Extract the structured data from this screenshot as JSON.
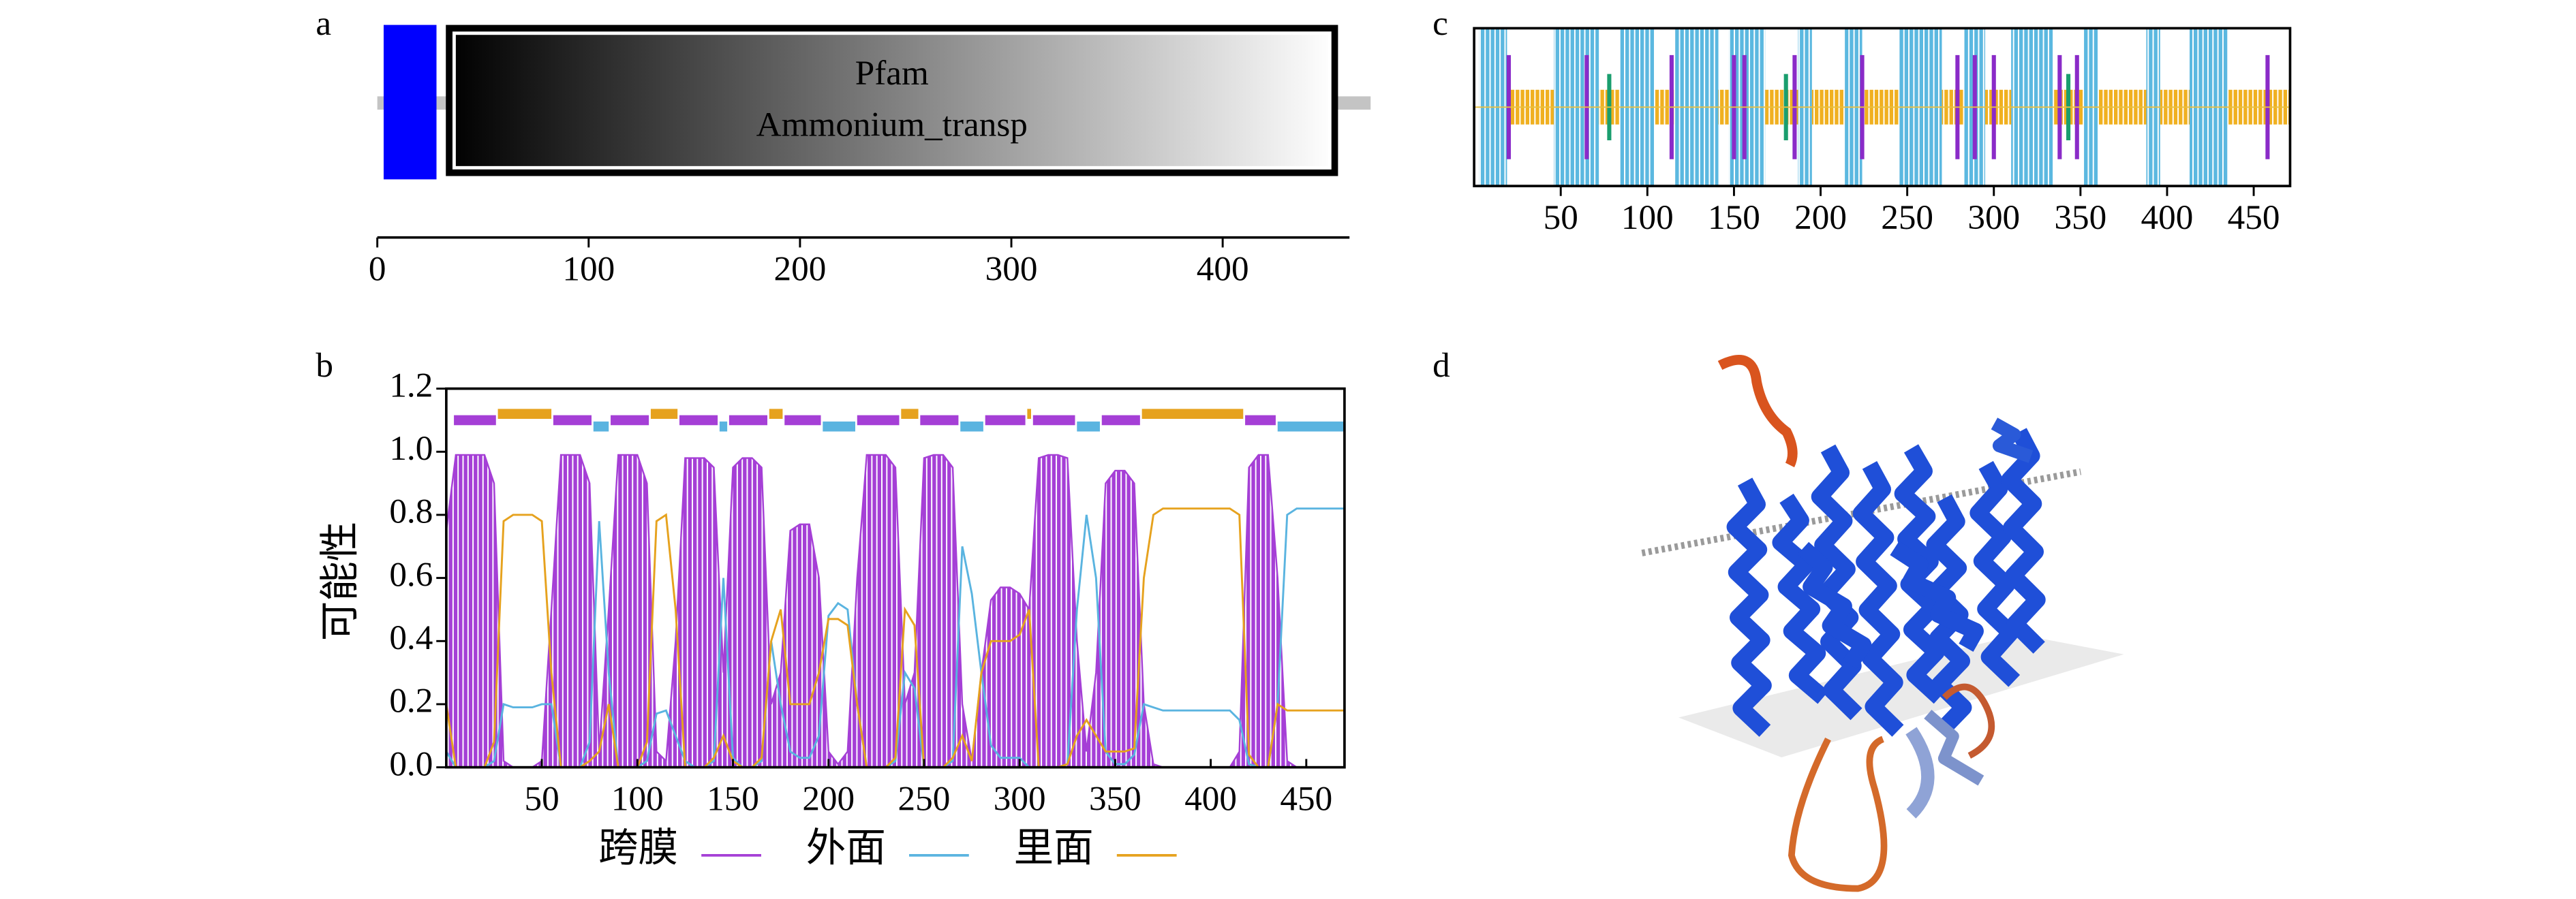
{
  "chart_data": [
    {
      "type": "domain",
      "panel_label": "a",
      "sequence_length": 470,
      "backbone_color": "#c4c4c4",
      "domains": [
        {
          "start": 3,
          "end": 28,
          "color": "#0000ff"
        },
        {
          "start": 34,
          "end": 453,
          "color": [
            "#000000",
            "#ffffff"
          ],
          "name": "Pfam",
          "label": "Ammonium_transp"
        }
      ],
      "xlim": [
        0,
        460
      ],
      "xticks": [
        0,
        100,
        200,
        300,
        400
      ]
    },
    {
      "type": "line",
      "panel_label": "b",
      "ylabel": "可能性",
      "x": [
        0,
        5,
        10,
        15,
        20,
        25,
        30,
        35,
        40,
        45,
        50,
        55,
        60,
        65,
        70,
        75,
        80,
        85,
        90,
        95,
        100,
        105,
        110,
        115,
        120,
        125,
        130,
        135,
        140,
        145,
        150,
        155,
        160,
        165,
        170,
        175,
        180,
        185,
        190,
        195,
        200,
        205,
        210,
        215,
        220,
        225,
        230,
        235,
        240,
        245,
        250,
        255,
        260,
        265,
        270,
        275,
        280,
        285,
        290,
        295,
        300,
        305,
        310,
        315,
        320,
        325,
        330,
        335,
        340,
        345,
        350,
        355,
        360,
        365,
        370,
        375,
        380,
        385,
        390,
        395,
        400,
        405,
        410,
        415,
        420,
        425,
        430,
        435,
        440,
        445,
        450,
        455,
        460,
        465,
        470
      ],
      "xlim": [
        0,
        470
      ],
      "xticks": [
        50,
        100,
        150,
        200,
        250,
        300,
        350,
        400,
        450
      ],
      "ylim": [
        0,
        1.2
      ],
      "yticks": [
        {
          "value": 0,
          "label": "0.0"
        },
        0.2,
        0.4,
        0.6,
        0.8,
        {
          "value": 1,
          "label": "1.0"
        },
        1.2
      ],
      "series": [
        {
          "name": "跨膜",
          "color": "#a53fd6",
          "fill": true,
          "track": 1.1,
          "values": [
            0.75,
            0.99,
            0.99,
            0.99,
            0.99,
            0.9,
            0.02,
            0,
            0,
            0,
            0.02,
            0.5,
            0.99,
            0.99,
            0.99,
            0.9,
            0.05,
            0.5,
            0.99,
            0.99,
            0.99,
            0.9,
            0.05,
            0.02,
            0.4,
            0.98,
            0.98,
            0.98,
            0.95,
            0.3,
            0.95,
            0.98,
            0.98,
            0.95,
            0.2,
            0.3,
            0.75,
            0.77,
            0.77,
            0.6,
            0.05,
            0.01,
            0.05,
            0.6,
            0.99,
            0.99,
            0.99,
            0.95,
            0.2,
            0.3,
            0.98,
            0.99,
            0.99,
            0.95,
            0.2,
            0.02,
            0.3,
            0.53,
            0.57,
            0.57,
            0.55,
            0.5,
            0.98,
            0.99,
            0.99,
            0.98,
            0.4,
            0.05,
            0.3,
            0.9,
            0.94,
            0.94,
            0.9,
            0.2,
            0.01,
            0,
            0,
            0,
            0,
            0,
            0,
            0,
            0,
            0.05,
            0.95,
            0.99,
            0.99,
            0.6,
            0.02,
            0,
            0,
            0,
            0,
            0,
            0
          ],
          "segments": [
            [
              4,
              26
            ],
            [
              56,
              76
            ],
            [
              86,
              106
            ],
            [
              122,
              142
            ],
            [
              148,
              168
            ],
            [
              177,
              196
            ],
            [
              215,
              237
            ],
            [
              248,
              268
            ],
            [
              282,
              303
            ],
            [
              307,
              329
            ],
            [
              343,
              363
            ],
            [
              418,
              434
            ]
          ]
        },
        {
          "name": "外面",
          "color": "#5ab4e0",
          "track": 1.08,
          "values": [
            0.05,
            0,
            0,
            0,
            0,
            0.02,
            0.2,
            0.19,
            0.19,
            0.19,
            0.2,
            0.2,
            0,
            0,
            0,
            0.08,
            0.78,
            0.3,
            0,
            0,
            0,
            0.02,
            0.17,
            0.18,
            0.1,
            0.02,
            0,
            0,
            0.02,
            0.6,
            0.03,
            0,
            0,
            0.02,
            0.4,
            0.2,
            0.05,
            0.03,
            0.03,
            0.1,
            0.48,
            0.52,
            0.5,
            0.2,
            0,
            0,
            0,
            0.02,
            0.3,
            0.25,
            0,
            0,
            0,
            0.02,
            0.7,
            0.55,
            0.3,
            0.07,
            0.03,
            0.03,
            0.03,
            0,
            0,
            0,
            0,
            0.01,
            0.5,
            0.8,
            0.6,
            0.05,
            0.01,
            0.01,
            0.04,
            0.2,
            0.19,
            0.18,
            0.18,
            0.18,
            0.18,
            0.18,
            0.18,
            0.18,
            0.18,
            0.15,
            0.01,
            0,
            0,
            0.2,
            0.8,
            0.82,
            0.82,
            0.82,
            0.82,
            0.82,
            0.82
          ],
          "segments": [
            [
              77,
              85
            ],
            [
              143,
              147
            ],
            [
              197,
              214
            ],
            [
              269,
              281
            ],
            [
              330,
              342
            ],
            [
              435,
              470
            ]
          ]
        },
        {
          "name": "里面",
          "color": "#e6a21e",
          "track": 1.12,
          "values": [
            0.2,
            0,
            0,
            0,
            0,
            0.08,
            0.78,
            0.8,
            0.8,
            0.8,
            0.78,
            0.3,
            0,
            0,
            0,
            0.02,
            0.05,
            0.2,
            0,
            0,
            0,
            0.08,
            0.78,
            0.8,
            0.5,
            0,
            0,
            0,
            0.03,
            0.1,
            0.02,
            0,
            0,
            0.03,
            0.4,
            0.5,
            0.2,
            0.2,
            0.2,
            0.3,
            0.47,
            0.47,
            0.45,
            0.2,
            0,
            0,
            0,
            0.03,
            0.5,
            0.45,
            0,
            0,
            0,
            0.03,
            0.1,
            0.02,
            0.3,
            0.4,
            0.4,
            0.4,
            0.42,
            0.5,
            0,
            0,
            0,
            0.01,
            0.1,
            0.15,
            0.1,
            0.05,
            0.05,
            0.05,
            0.06,
            0.6,
            0.8,
            0.82,
            0.82,
            0.82,
            0.82,
            0.82,
            0.82,
            0.82,
            0.82,
            0.8,
            0.04,
            0,
            0,
            0.2,
            0.18,
            0.18,
            0.18,
            0.18,
            0.18,
            0.18,
            0.18
          ],
          "segments": [
            [
              27,
              55
            ],
            [
              107,
              121
            ],
            [
              169,
              176
            ],
            [
              238,
              247
            ],
            [
              304,
              306
            ],
            [
              364,
              417
            ]
          ]
        }
      ]
    },
    {
      "type": "track",
      "panel_label": "c",
      "xlim": [
        0,
        471
      ],
      "xticks": [
        50,
        100,
        150,
        200,
        250,
        300,
        350,
        400,
        450
      ],
      "series": [
        {
          "color": "#5bb8e0",
          "segments": [
            [
              3,
              19
            ],
            [
              46,
              72
            ],
            [
              84,
              104
            ],
            [
              116,
              141
            ],
            [
              147,
              168
            ],
            [
              187,
              195
            ],
            [
              214,
              224
            ],
            [
              245,
              270
            ],
            [
              283,
              295
            ],
            [
              310,
              334
            ],
            [
              352,
              360
            ],
            [
              388,
              396
            ],
            [
              413,
              435
            ]
          ]
        },
        {
          "color": "#f0b020",
          "segments": [
            [
              19,
              46
            ],
            [
              72,
              84
            ],
            [
              104,
              116
            ],
            [
              141,
              147
            ],
            [
              168,
              187
            ],
            [
              195,
              214
            ],
            [
              224,
              245
            ],
            [
              270,
              283
            ],
            [
              295,
              310
            ],
            [
              334,
              352
            ],
            [
              360,
              388
            ],
            [
              396,
              413
            ],
            [
              435,
              471
            ]
          ]
        },
        {
          "color": "#8a2bc8",
          "positions": [
            20,
            65,
            114,
            150,
            156,
            185,
            224,
            279,
            289,
            300,
            338,
            348,
            458
          ]
        },
        {
          "color": "#1a9e6e",
          "positions": [
            78,
            180,
            343
          ]
        }
      ]
    },
    {
      "type": "image",
      "panel_label": "d"
    }
  ]
}
